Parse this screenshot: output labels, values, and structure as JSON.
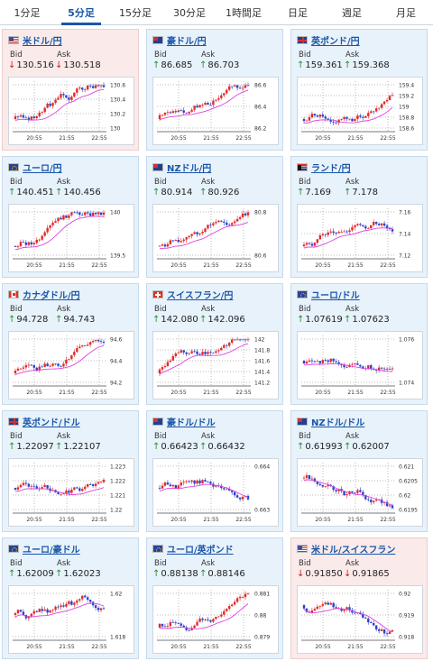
{
  "tabs": [
    {
      "label": "1分足",
      "active": false
    },
    {
      "label": "5分足",
      "active": true
    },
    {
      "label": "15分足",
      "active": false
    },
    {
      "label": "30分足",
      "active": false
    },
    {
      "label": "1時間足",
      "active": false
    },
    {
      "label": "日足",
      "active": false
    },
    {
      "label": "週足",
      "active": false
    },
    {
      "label": "月足",
      "active": false
    }
  ],
  "bid_label": "Bid",
  "ask_label": "Ask",
  "time_labels": [
    "20:55",
    "21:55",
    "22:55"
  ],
  "colors": {
    "up_arrow": "#2a8a3a",
    "down_arrow": "#c52222",
    "candle_up": "#e22a2a",
    "candle_down": "#2a43c9",
    "ma": "#e040e0"
  },
  "pairs": [
    {
      "name": "米ドル/円",
      "flag": "us",
      "direction": "down",
      "bid": "130.516",
      "ask": "130.518",
      "y_ticks": [
        "130.6",
        "130.4",
        "130.2",
        "130"
      ],
      "trend": "up"
    },
    {
      "name": "豪ドル/円",
      "flag": "au",
      "direction": "up",
      "bid": "86.685",
      "ask": "86.703",
      "y_ticks": [
        "86.6",
        "86.4",
        "86.2"
      ],
      "trend": "up"
    },
    {
      "name": "英ポンド/円",
      "flag": "gb",
      "direction": "up",
      "bid": "159.361",
      "ask": "159.368",
      "y_ticks": [
        "159.4",
        "159.2",
        "159",
        "158.8",
        "158.6"
      ],
      "trend": "up"
    },
    {
      "name": "ユーロ/円",
      "flag": "eu",
      "direction": "up",
      "bid": "140.451",
      "ask": "140.456",
      "y_ticks": [
        "140",
        "139.5"
      ],
      "trend": "up"
    },
    {
      "name": "NZドル/円",
      "flag": "nz",
      "direction": "up",
      "bid": "80.914",
      "ask": "80.926",
      "y_ticks": [
        "80.8",
        "80.6"
      ],
      "trend": "up"
    },
    {
      "name": "ランド/円",
      "flag": "za",
      "direction": "up",
      "bid": "7.169",
      "ask": "7.178",
      "y_ticks": [
        "7.16",
        "7.14",
        "7.12"
      ],
      "trend": "up"
    },
    {
      "name": "カナダドル/円",
      "flag": "ca",
      "direction": "up",
      "bid": "94.728",
      "ask": "94.743",
      "y_ticks": [
        "94.6",
        "94.4",
        "94.2"
      ],
      "trend": "up"
    },
    {
      "name": "スイスフラン/円",
      "flag": "ch",
      "direction": "up",
      "bid": "142.080",
      "ask": "142.096",
      "y_ticks": [
        "142",
        "141.8",
        "141.6",
        "141.4",
        "141.2"
      ],
      "trend": "up"
    },
    {
      "name": "ユーロ/ドル",
      "flag": "eu",
      "direction": "up",
      "bid": "1.07619",
      "ask": "1.07623",
      "y_ticks": [
        "1.076",
        "1.074"
      ],
      "trend": "flat"
    },
    {
      "name": "英ポンド/ドル",
      "flag": "gb",
      "direction": "up",
      "bid": "1.22097",
      "ask": "1.22107",
      "y_ticks": [
        "1.223",
        "1.222",
        "1.221",
        "1.22"
      ],
      "trend": "flat"
    },
    {
      "name": "豪ドル/ドル",
      "flag": "au",
      "direction": "up",
      "bid": "0.66423",
      "ask": "0.66432",
      "y_ticks": [
        "0.664",
        "0.663"
      ],
      "trend": "flat"
    },
    {
      "name": "NZドル/ドル",
      "flag": "nz",
      "direction": "up",
      "bid": "0.61993",
      "ask": "0.62007",
      "y_ticks": [
        "0.621",
        "0.6205",
        "0.62",
        "0.6195"
      ],
      "trend": "down"
    },
    {
      "name": "ユーロ/豪ドル",
      "flag": "eu",
      "direction": "up",
      "bid": "1.62009",
      "ask": "1.62023",
      "y_ticks": [
        "1.62",
        "1.618"
      ],
      "trend": "flat"
    },
    {
      "name": "ユーロ/英ポンド",
      "flag": "eu",
      "direction": "up",
      "bid": "0.88138",
      "ask": "0.88146",
      "y_ticks": [
        "0.881",
        "0.88",
        "0.879"
      ],
      "trend": "up"
    },
    {
      "name": "米ドル/スイスフラン",
      "flag": "us",
      "direction": "down",
      "bid": "0.91850",
      "ask": "0.91865",
      "y_ticks": [
        "0.92",
        "0.919",
        "0.918"
      ],
      "trend": "down"
    }
  ]
}
